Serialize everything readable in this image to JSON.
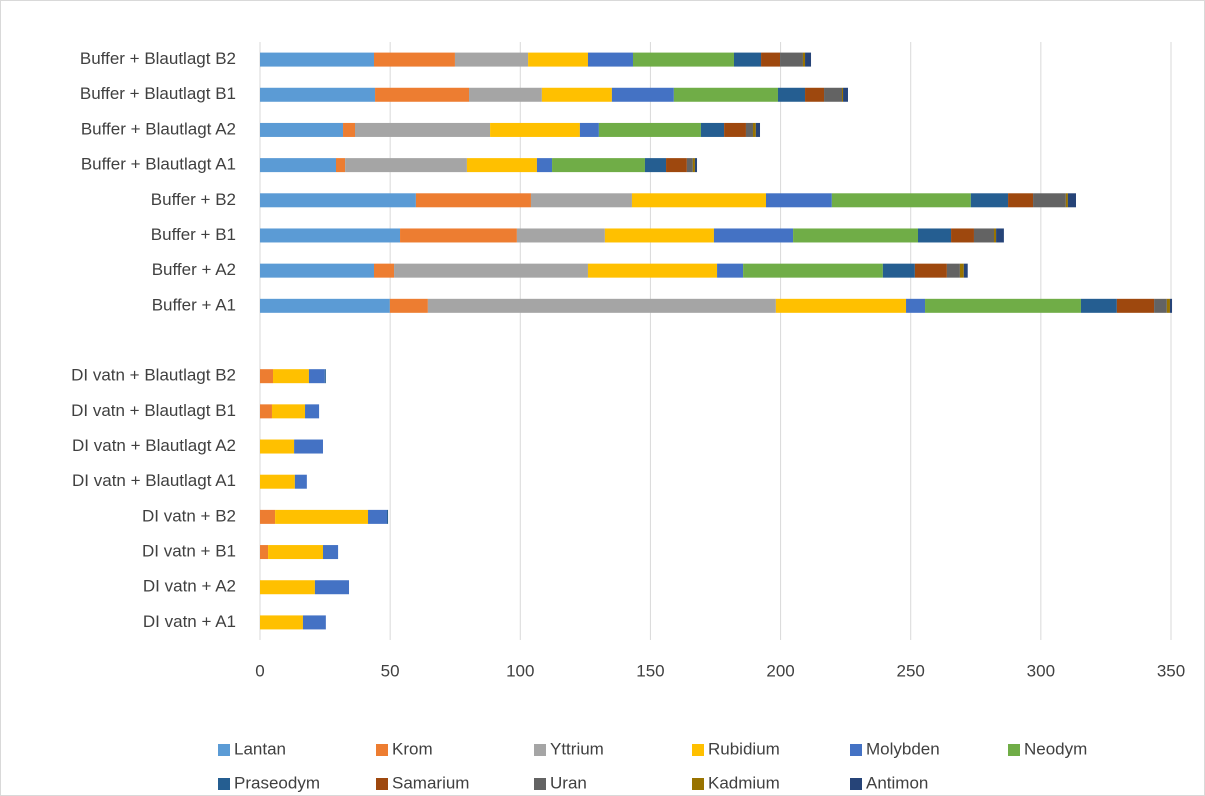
{
  "chart_data": {
    "type": "stacked-bar-horizontal",
    "categories": [
      "Buffer + Blautlagt B2",
      "Buffer + Blautlagt B1",
      "Buffer + Blautlagt A2",
      "Buffer + Blautlagt A1",
      "Buffer + B2",
      "Buffer + B1",
      "Buffer + A2",
      "Buffer + A1",
      null,
      "DI vatn + Blautlagt B2",
      "DI vatn + Blautlagt B1",
      "DI vatn + Blautlagt A2",
      "DI vatn + Blautlagt A1",
      "DI vatn + B2",
      "DI vatn + B1",
      "DI vatn + A2",
      "DI vatn + A1"
    ],
    "series": [
      {
        "name": "Lantan",
        "color": "#5b9bd5",
        "values": [
          43.8,
          44.2,
          31.9,
          29.2,
          59.9,
          53.8,
          43.8,
          49.9,
          null,
          0,
          0,
          0,
          0,
          0,
          0,
          0,
          0
        ]
      },
      {
        "name": "Krom",
        "color": "#ed7d31",
        "values": [
          31.1,
          36.1,
          4.6,
          3.5,
          44.2,
          44.9,
          7.7,
          14.6,
          null,
          5,
          4.6,
          0,
          0,
          5.8,
          3.1,
          0,
          0
        ]
      },
      {
        "name": "Yttrium",
        "color": "#a5a5a5",
        "values": [
          28.1,
          28,
          51.9,
          46.8,
          38.8,
          33.8,
          74.5,
          133.7,
          null,
          0,
          0,
          0,
          0,
          0,
          0,
          0,
          0
        ]
      },
      {
        "name": "Rubidium",
        "color": "#ffc000",
        "values": [
          23,
          26.9,
          34.5,
          26.9,
          51.5,
          41.9,
          49.6,
          50,
          null,
          13.8,
          12.7,
          13.1,
          13.4,
          35.7,
          21.1,
          21.1,
          16.5
        ]
      },
      {
        "name": "Molybden",
        "color": "#4472c4",
        "values": [
          17.3,
          23.8,
          7.3,
          5.8,
          25.3,
          30.4,
          10,
          7.3,
          null,
          6.1,
          5.4,
          11.1,
          4.6,
          7.3,
          5.8,
          13.1,
          8.8
        ]
      },
      {
        "name": "Neodym",
        "color": "#70ad47",
        "values": [
          38.8,
          40,
          39.2,
          35.7,
          53.4,
          48,
          53.7,
          59.9,
          null,
          0,
          0,
          0,
          0,
          0,
          0,
          0,
          0
        ]
      },
      {
        "name": "Praseodym",
        "color": "#255e91",
        "values": [
          10.4,
          10.4,
          8.9,
          8.1,
          14.3,
          12.7,
          12.3,
          13.8,
          null,
          0.4,
          0,
          0,
          0,
          0.4,
          0,
          0,
          0
        ]
      },
      {
        "name": "Samarium",
        "color": "#9e480e",
        "values": [
          7.3,
          7.3,
          8.4,
          8,
          9.6,
          8.8,
          12.3,
          14.3,
          null,
          0,
          0,
          0,
          0,
          0,
          0,
          0,
          0
        ]
      },
      {
        "name": "Uran",
        "color": "#636363",
        "values": [
          8.8,
          6.9,
          2.7,
          2.3,
          12.6,
          7.7,
          5,
          4.9,
          null,
          0,
          0,
          0,
          0,
          0,
          0,
          0,
          0
        ]
      },
      {
        "name": "Kadmium",
        "color": "#997300",
        "values": [
          0.8,
          0.4,
          1.1,
          0.8,
          0.8,
          0.8,
          1.5,
          1.2,
          null,
          0,
          0,
          0,
          0,
          0,
          0,
          0,
          0
        ]
      },
      {
        "name": "Antimon",
        "color": "#264478",
        "values": [
          2.3,
          1.9,
          1.6,
          0.8,
          3.1,
          3,
          1.5,
          0.8,
          null,
          0,
          0,
          0,
          0,
          0,
          0,
          0,
          0
        ]
      }
    ],
    "xlim": [
      0,
      350
    ],
    "xticks": [
      0,
      50,
      100,
      150,
      200,
      250,
      300,
      350
    ],
    "grid": true,
    "legend": "bottom"
  }
}
